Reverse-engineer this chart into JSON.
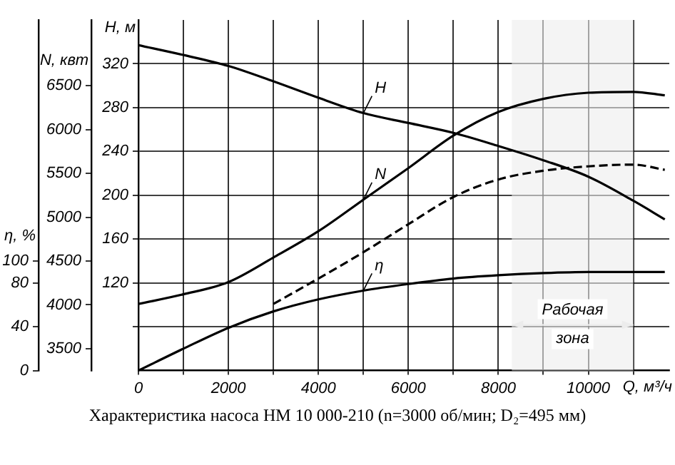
{
  "chart_data": {
    "type": "line",
    "title": "Характеристика насоса НМ 10 000-210 (n=3000 об/мин; D₂=495 мм)",
    "xlabel": "Q, м³/ч",
    "ylabel": "H, м",
    "y2label": "N, квт",
    "y3label": "η, %",
    "x": [
      0,
      1000,
      2000,
      3000,
      4000,
      5000,
      6000,
      7000,
      8000,
      9000,
      10000,
      11000,
      11700
    ],
    "series": [
      {
        "name": "H",
        "color": "#000000",
        "values": [
          337,
          328,
          318,
          304,
          289,
          275,
          266,
          257,
          245,
          232,
          217,
          195,
          178
        ]
      },
      {
        "name": "N",
        "color": "#000000",
        "axis": "y2",
        "values": [
          4010,
          4120,
          4260,
          4540,
          4840,
          5200,
          5560,
          5930,
          6200,
          6350,
          6420,
          6430,
          6390
        ]
      },
      {
        "color": "#000000",
        "axis": "y2",
        "line_style": "dashed",
        "x": [
          3000,
          4000,
          5000,
          6000,
          7000,
          8000,
          9000,
          10000,
          11000,
          11700
        ],
        "values": [
          4010,
          4300,
          4600,
          4920,
          5230,
          5430,
          5530,
          5580,
          5600,
          5540
        ]
      },
      {
        "name": "η",
        "color": "#000000",
        "axis": "y3",
        "values": [
          0,
          20,
          39,
          54,
          65,
          73,
          79,
          84,
          87,
          89,
          90,
          90,
          90
        ]
      }
    ],
    "xlim": [
      0,
      11800
    ],
    "xticks": [
      0,
      {
        "value": 1000,
        "label": null
      },
      2000,
      {
        "value": 3000,
        "label": null
      },
      4000,
      {
        "value": 5000,
        "label": null
      },
      6000,
      {
        "value": 7000,
        "label": null
      },
      8000,
      {
        "value": 9000,
        "label": null
      },
      10000,
      {
        "value": 11000,
        "label": null
      }
    ],
    "ylim": [
      40,
      360
    ],
    "yticks": [
      {
        "value": 80,
        "label": null
      },
      120,
      160,
      200,
      240,
      280,
      320
    ],
    "y2lim": [
      3250,
      7250
    ],
    "y2ticks": [
      3500,
      4000,
      4500,
      5000,
      5500,
      6000,
      6500
    ],
    "y3lim": [
      0,
      320
    ],
    "y3ticks": [
      0,
      40,
      80,
      100
    ],
    "bands": [
      {
        "axis": "x",
        "from": 8300,
        "to": 11000,
        "label": "Рабочая зона",
        "color": "#ececec"
      }
    ],
    "grid": true,
    "marker": "none",
    "line_style": "solid",
    "legend": false
  }
}
